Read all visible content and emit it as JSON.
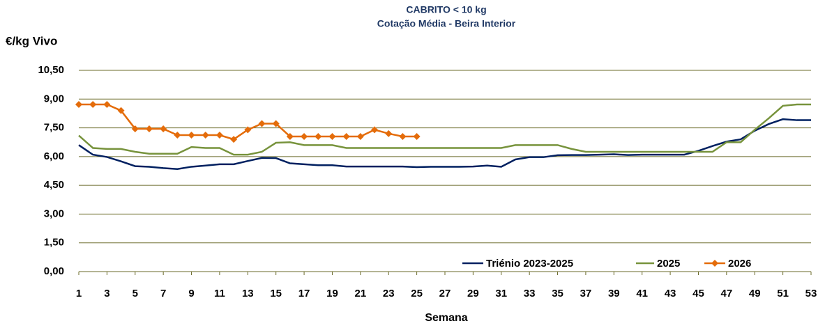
{
  "chart_data": {
    "type": "line",
    "title": "CABRITO < 10 kg",
    "subtitle": "Cotação Média - Beira Interior",
    "y_label": "€/kg Vivo",
    "x_label": "Semana",
    "x": [
      1,
      2,
      3,
      4,
      5,
      6,
      7,
      8,
      9,
      10,
      11,
      12,
      13,
      14,
      15,
      16,
      17,
      18,
      19,
      20,
      21,
      22,
      23,
      24,
      25,
      26,
      27,
      28,
      29,
      30,
      31,
      32,
      33,
      34,
      35,
      36,
      37,
      38,
      39,
      40,
      41,
      42,
      43,
      44,
      45,
      46,
      47,
      48,
      49,
      50,
      51,
      52,
      53
    ],
    "xlim": [
      1,
      53
    ],
    "xticks": [
      1,
      3,
      5,
      7,
      9,
      11,
      13,
      15,
      17,
      19,
      21,
      23,
      25,
      27,
      29,
      31,
      33,
      35,
      37,
      39,
      41,
      43,
      45,
      47,
      49,
      51,
      53
    ],
    "ylim": [
      0,
      10.5
    ],
    "yticks": [
      {
        "value": 0,
        "label": "0,00"
      },
      {
        "value": 1.5,
        "label": "1,50"
      },
      {
        "value": 3,
        "label": "3,00"
      },
      {
        "value": 4.5,
        "label": "4,50"
      },
      {
        "value": 6,
        "label": "6,00"
      },
      {
        "value": 7.5,
        "label": "7,50"
      },
      {
        "value": 9,
        "label": "9,00"
      },
      {
        "value": 10.5,
        "label": "10,50"
      }
    ],
    "grid": true,
    "legend": "bottom-right",
    "series": [
      {
        "name": "Triénio 2023-2025",
        "color": "#002060",
        "marker": "none",
        "values": [
          6.6,
          6.1,
          5.98,
          5.75,
          5.5,
          5.47,
          5.4,
          5.35,
          5.47,
          5.53,
          5.6,
          5.6,
          5.77,
          5.93,
          5.92,
          5.65,
          5.6,
          5.55,
          5.55,
          5.48,
          5.48,
          5.48,
          5.48,
          5.48,
          5.45,
          5.47,
          5.47,
          5.47,
          5.48,
          5.53,
          5.47,
          5.85,
          5.97,
          5.97,
          6.07,
          6.08,
          6.08,
          6.1,
          6.12,
          6.08,
          6.1,
          6.1,
          6.1,
          6.1,
          6.3,
          6.55,
          6.78,
          6.9,
          7.35,
          7.7,
          7.95,
          7.9,
          7.9
        ]
      },
      {
        "name": "2025",
        "color": "#77933c",
        "marker": "none",
        "values": [
          7.1,
          6.45,
          6.4,
          6.4,
          6.25,
          6.15,
          6.15,
          6.15,
          6.5,
          6.45,
          6.45,
          6.1,
          6.1,
          6.25,
          6.72,
          6.75,
          6.6,
          6.6,
          6.6,
          6.45,
          6.45,
          6.45,
          6.45,
          6.45,
          6.45,
          6.45,
          6.45,
          6.45,
          6.45,
          6.45,
          6.45,
          6.6,
          6.6,
          6.6,
          6.6,
          6.4,
          6.25,
          6.25,
          6.25,
          6.25,
          6.25,
          6.25,
          6.25,
          6.25,
          6.25,
          6.25,
          6.75,
          6.75,
          7.4,
          8.0,
          8.65,
          8.72,
          8.72
        ]
      },
      {
        "name": "2026",
        "color": "#e46c0a",
        "marker": "diamond",
        "values": [
          8.72,
          8.72,
          8.72,
          8.4,
          7.45,
          7.45,
          7.45,
          7.12,
          7.12,
          7.12,
          7.12,
          6.9,
          7.4,
          7.72,
          7.72,
          7.05,
          7.05,
          7.05,
          7.05,
          7.05,
          7.05,
          7.4,
          7.2,
          7.05,
          7.05,
          null,
          null,
          null,
          null,
          null,
          null,
          null,
          null,
          null,
          null,
          null,
          null,
          null,
          null,
          null,
          null,
          null,
          null,
          null,
          null,
          null,
          null,
          null,
          null,
          null,
          null,
          null,
          null
        ]
      }
    ]
  }
}
